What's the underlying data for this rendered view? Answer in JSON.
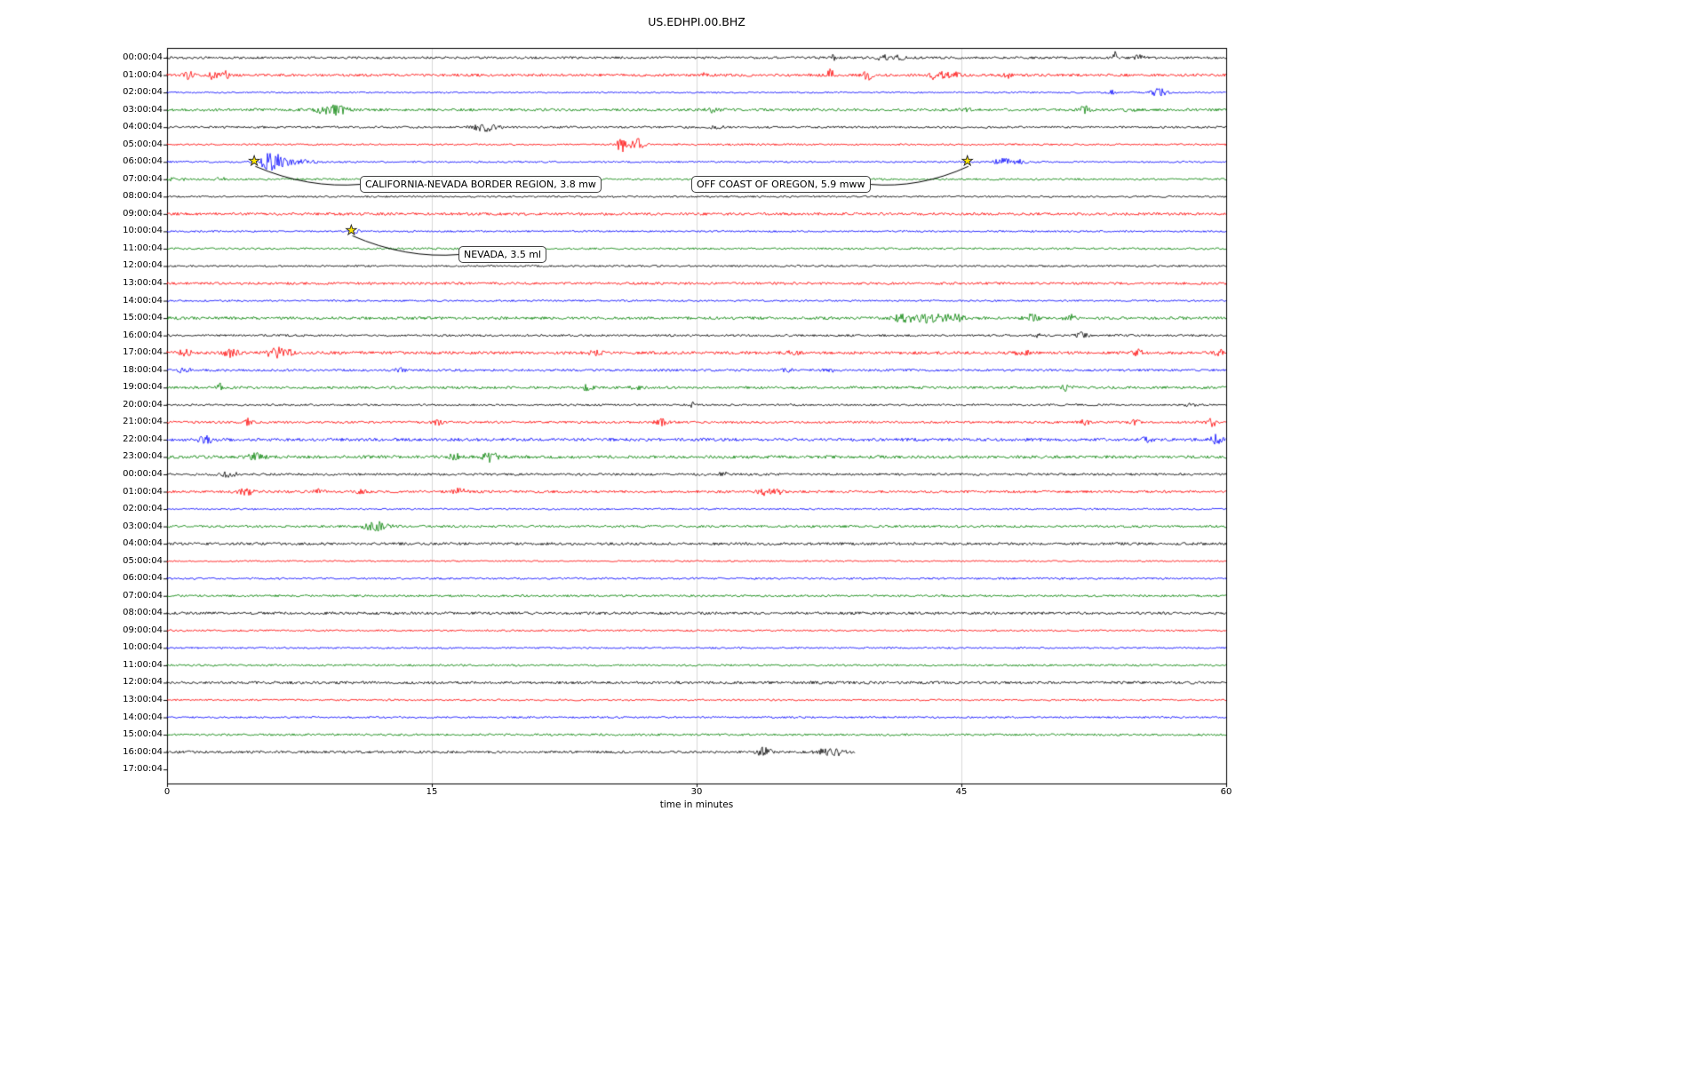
{
  "chart_data": {
    "type": "line",
    "subtype": "seismogram-dayplot",
    "title": "US.EDHPI.00.BHZ",
    "xlabel": "time in minutes",
    "xlim": [
      0,
      60
    ],
    "x_ticks": [
      0,
      15,
      30,
      45,
      60
    ],
    "grid": "vertical gridlines at 15, 30, 45",
    "legend": "none",
    "trace_color_cycle": [
      "#000000",
      "#ff0000",
      "#0000ff",
      "#008000"
    ],
    "annotations": [
      {
        "label": "CALIFORNIA-NEVADA BORDER REGION, 3.8 mw",
        "row": 6,
        "row_label": "06:00:04",
        "minute": 5.0,
        "marker": "yellow-star"
      },
      {
        "label": "OFF COAST OF OREGON, 5.9 mww",
        "row": 6,
        "row_label": "06:00:04",
        "minute": 45.4,
        "marker": "yellow-star"
      },
      {
        "label": "NEVADA, 3.5 ml",
        "row": 10,
        "row_label": "10:00:04",
        "minute": 10.5,
        "marker": "yellow-star"
      }
    ],
    "rows": [
      {
        "label": "00:00:04",
        "color": "#000000",
        "noise": 1.3,
        "end": 60,
        "bursts": [
          [
            37.8,
            4,
            0.12
          ],
          [
            40.5,
            3,
            0.3
          ],
          [
            41.5,
            2.5,
            0.2
          ],
          [
            53.7,
            6,
            0.1
          ],
          [
            55,
            2.5,
            0.25
          ]
        ]
      },
      {
        "label": "01:00:04",
        "color": "#ff0000",
        "noise": 1.5,
        "end": 60,
        "bursts": [
          [
            1.2,
            5,
            0.2
          ],
          [
            2.6,
            5,
            0.15
          ],
          [
            3.3,
            4,
            0.2
          ],
          [
            30.5,
            2.5,
            0.2
          ],
          [
            37.6,
            6,
            0.15
          ],
          [
            39.7,
            5,
            0.2
          ],
          [
            43.6,
            6,
            0.25
          ],
          [
            44.5,
            3,
            0.3
          ],
          [
            47.6,
            5,
            0.15
          ]
        ]
      },
      {
        "label": "02:00:04",
        "color": "#0000ff",
        "noise": 0.9,
        "end": 60,
        "bursts": [
          [
            53.5,
            2.5,
            0.15
          ],
          [
            56.2,
            5,
            0.3
          ]
        ]
      },
      {
        "label": "03:00:04",
        "color": "#008000",
        "noise": 1.5,
        "end": 60,
        "bursts": [
          [
            9.0,
            4,
            0.5
          ],
          [
            9.8,
            3.5,
            0.4
          ],
          [
            30.8,
            2.5,
            0.3
          ],
          [
            45.2,
            2.5,
            0.2
          ],
          [
            52.0,
            3.5,
            0.25
          ],
          [
            54.6,
            2.5,
            0.2
          ]
        ]
      },
      {
        "label": "04:00:04",
        "color": "#000000",
        "noise": 1.2,
        "end": 60,
        "bursts": [
          [
            18.0,
            4,
            0.5
          ],
          [
            31.2,
            2,
            0.3
          ]
        ]
      },
      {
        "label": "05:00:04",
        "color": "#ff0000",
        "noise": 1.0,
        "end": 60,
        "bursts": [
          [
            25.8,
            8,
            0.25
          ],
          [
            26.6,
            7,
            0.3
          ]
        ]
      },
      {
        "label": "06:00:04",
        "color": "#0000ff",
        "noise": 1.0,
        "end": 60,
        "bursts": [
          [
            5.75,
            9,
            0.35
          ],
          [
            6.3,
            5,
            0.5
          ],
          [
            7.2,
            2.5,
            0.8
          ],
          [
            47.3,
            4,
            0.4
          ],
          [
            48.2,
            2,
            0.4
          ]
        ]
      },
      {
        "label": "07:00:04",
        "color": "#008000",
        "noise": 1.1,
        "end": 60,
        "bursts": [
          [
            0.5,
            2,
            0.3
          ],
          [
            3.0,
            1.5,
            0.3
          ]
        ]
      },
      {
        "label": "08:00:04",
        "color": "#000000",
        "noise": 1.0,
        "end": 60,
        "bursts": []
      },
      {
        "label": "09:00:04",
        "color": "#ff0000",
        "noise": 1.5,
        "end": 60,
        "bursts": []
      },
      {
        "label": "10:00:04",
        "color": "#0000ff",
        "noise": 1.0,
        "end": 60,
        "bursts": [
          [
            10.7,
            1.5,
            0.2
          ]
        ]
      },
      {
        "label": "11:00:04",
        "color": "#008000",
        "noise": 1.1,
        "end": 60,
        "bursts": []
      },
      {
        "label": "12:00:04",
        "color": "#000000",
        "noise": 1.1,
        "end": 60,
        "bursts": []
      },
      {
        "label": "13:00:04",
        "color": "#ff0000",
        "noise": 1.4,
        "end": 60,
        "bursts": []
      },
      {
        "label": "14:00:04",
        "color": "#0000ff",
        "noise": 1.0,
        "end": 60,
        "bursts": []
      },
      {
        "label": "15:00:04",
        "color": "#008000",
        "noise": 1.6,
        "end": 60,
        "bursts": [
          [
            41.8,
            5,
            0.4
          ],
          [
            43.2,
            5,
            0.5
          ],
          [
            44.6,
            4,
            0.4
          ],
          [
            49.0,
            4,
            0.3
          ],
          [
            51.2,
            3,
            0.3
          ]
        ]
      },
      {
        "label": "16:00:04",
        "color": "#000000",
        "noise": 1.2,
        "end": 60,
        "bursts": [
          [
            49.3,
            2,
            0.2
          ],
          [
            51.8,
            3,
            0.25
          ]
        ]
      },
      {
        "label": "17:00:04",
        "color": "#ff0000",
        "noise": 1.6,
        "end": 60,
        "bursts": [
          [
            1.0,
            3,
            0.3
          ],
          [
            3.6,
            4,
            0.3
          ],
          [
            6.1,
            5,
            0.35
          ],
          [
            6.8,
            4,
            0.3
          ],
          [
            24.3,
            2.5,
            0.3
          ],
          [
            35.5,
            2.5,
            0.3
          ],
          [
            48.5,
            2.5,
            0.3
          ],
          [
            55.0,
            3,
            0.2
          ],
          [
            59.6,
            4,
            0.15
          ]
        ]
      },
      {
        "label": "18:00:04",
        "color": "#0000ff",
        "noise": 1.3,
        "end": 60,
        "bursts": [
          [
            1.0,
            3,
            0.25
          ],
          [
            13.2,
            2,
            0.2
          ],
          [
            35.2,
            2.5,
            0.2
          ],
          [
            37.5,
            2,
            0.2
          ]
        ]
      },
      {
        "label": "19:00:04",
        "color": "#008000",
        "noise": 1.4,
        "end": 60,
        "bursts": [
          [
            3.0,
            4,
            0.12
          ],
          [
            23.8,
            4,
            0.2
          ],
          [
            26.6,
            2.5,
            0.2
          ],
          [
            51.0,
            4,
            0.2
          ]
        ]
      },
      {
        "label": "20:00:04",
        "color": "#000000",
        "noise": 1.1,
        "end": 60,
        "bursts": [
          [
            29.7,
            3,
            0.15
          ],
          [
            58.0,
            2,
            0.2
          ]
        ]
      },
      {
        "label": "21:00:04",
        "color": "#ff0000",
        "noise": 1.3,
        "end": 60,
        "bursts": [
          [
            4.6,
            4,
            0.2
          ],
          [
            15.3,
            3,
            0.2
          ],
          [
            28.0,
            3.5,
            0.25
          ],
          [
            52.0,
            2.5,
            0.2
          ],
          [
            54.8,
            3,
            0.2
          ],
          [
            59.2,
            4,
            0.2
          ]
        ]
      },
      {
        "label": "22:00:04",
        "color": "#0000ff",
        "noise": 1.7,
        "end": 60,
        "bursts": [
          [
            2.2,
            4,
            0.3
          ],
          [
            55.5,
            2.5,
            0.2
          ],
          [
            59.5,
            5,
            0.25
          ]
        ]
      },
      {
        "label": "23:00:04",
        "color": "#008000",
        "noise": 1.7,
        "end": 60,
        "bursts": [
          [
            5.0,
            4.5,
            0.3
          ],
          [
            16.3,
            3.5,
            0.25
          ],
          [
            18.3,
            5,
            0.3
          ]
        ]
      },
      {
        "label": "00:00:04",
        "color": "#000000",
        "noise": 1.3,
        "end": 60,
        "bursts": [
          [
            3.5,
            2.5,
            0.4
          ],
          [
            31.5,
            4,
            0.12
          ]
        ]
      },
      {
        "label": "01:00:04",
        "color": "#ff0000",
        "noise": 1.4,
        "end": 60,
        "bursts": [
          [
            4.5,
            3.5,
            0.3
          ],
          [
            8.6,
            2.5,
            0.2
          ],
          [
            11.0,
            2.5,
            0.2
          ],
          [
            16.6,
            3.5,
            0.25
          ],
          [
            33.9,
            3.5,
            0.3
          ],
          [
            34.6,
            2.5,
            0.2
          ]
        ]
      },
      {
        "label": "02:00:04",
        "color": "#0000ff",
        "noise": 1.0,
        "end": 60,
        "bursts": []
      },
      {
        "label": "03:00:04",
        "color": "#008000",
        "noise": 1.3,
        "end": 60,
        "bursts": [
          [
            11.7,
            4,
            0.4
          ],
          [
            12.3,
            3,
            0.3
          ]
        ]
      },
      {
        "label": "04:00:04",
        "color": "#000000",
        "noise": 1.5,
        "end": 60,
        "bursts": []
      },
      {
        "label": "05:00:04",
        "color": "#ff0000",
        "noise": 0.9,
        "end": 60,
        "bursts": []
      },
      {
        "label": "06:00:04",
        "color": "#0000ff",
        "noise": 1.1,
        "end": 60,
        "bursts": []
      },
      {
        "label": "07:00:04",
        "color": "#008000",
        "noise": 1.2,
        "end": 60,
        "bursts": []
      },
      {
        "label": "08:00:04",
        "color": "#000000",
        "noise": 1.5,
        "end": 60,
        "bursts": []
      },
      {
        "label": "09:00:04",
        "color": "#ff0000",
        "noise": 1.0,
        "end": 60,
        "bursts": []
      },
      {
        "label": "10:00:04",
        "color": "#0000ff",
        "noise": 1.0,
        "end": 60,
        "bursts": []
      },
      {
        "label": "11:00:04",
        "color": "#008000",
        "noise": 1.1,
        "end": 60,
        "bursts": []
      },
      {
        "label": "12:00:04",
        "color": "#000000",
        "noise": 1.5,
        "end": 60,
        "bursts": []
      },
      {
        "label": "13:00:04",
        "color": "#ff0000",
        "noise": 1.0,
        "end": 60,
        "bursts": []
      },
      {
        "label": "14:00:04",
        "color": "#0000ff",
        "noise": 1.0,
        "end": 60,
        "bursts": []
      },
      {
        "label": "15:00:04",
        "color": "#008000",
        "noise": 1.2,
        "end": 60,
        "bursts": []
      },
      {
        "label": "16:00:04",
        "color": "#000000",
        "noise": 1.4,
        "end": 39.0,
        "bursts": [
          [
            33.8,
            4.5,
            0.3
          ],
          [
            37.2,
            3.5,
            0.3
          ],
          [
            38.0,
            3.5,
            0.25
          ]
        ]
      },
      {
        "label": "17:00:04",
        "color": "#ff0000",
        "noise": 0,
        "end": 0,
        "bursts": []
      }
    ]
  }
}
